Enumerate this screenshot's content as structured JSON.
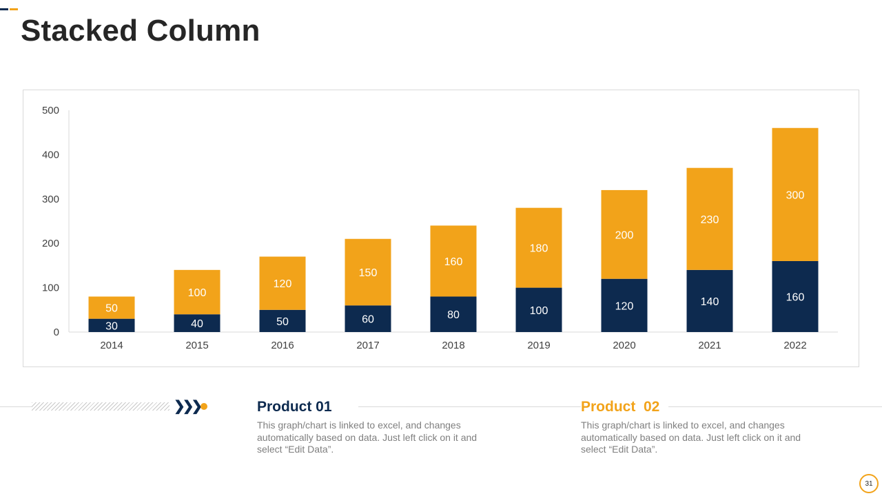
{
  "page": {
    "title": "Stacked Column",
    "page_number": "31"
  },
  "colors": {
    "navy": "#0d2a4f",
    "gold": "#f2a31a",
    "text_dark": "#262626",
    "text_gray": "#7f7f7f"
  },
  "chart_data": {
    "type": "bar",
    "stacked": true,
    "categories": [
      "2014",
      "2015",
      "2016",
      "2017",
      "2018",
      "2019",
      "2020",
      "2021",
      "2022"
    ],
    "series": [
      {
        "name": "Product 01",
        "color": "#0d2a4f",
        "values": [
          30,
          40,
          50,
          60,
          80,
          100,
          120,
          140,
          160
        ]
      },
      {
        "name": "Product  02",
        "color": "#f2a31a",
        "values": [
          50,
          100,
          120,
          150,
          160,
          180,
          200,
          230,
          300
        ]
      }
    ],
    "ylim": [
      0,
      500
    ],
    "yticks": [
      "0",
      "100",
      "200",
      "300",
      "400",
      "500"
    ],
    "grid": false,
    "data_labels": true
  },
  "footer": {
    "products": [
      {
        "title": "Product 01",
        "description": "This graph/chart is linked to excel, and changes automatically based on data. Just left click on it and select “Edit Data”."
      },
      {
        "title": "Product  02",
        "description": "This graph/chart is linked to excel, and changes automatically based on data. Just left click on it and select “Edit Data”."
      }
    ]
  }
}
